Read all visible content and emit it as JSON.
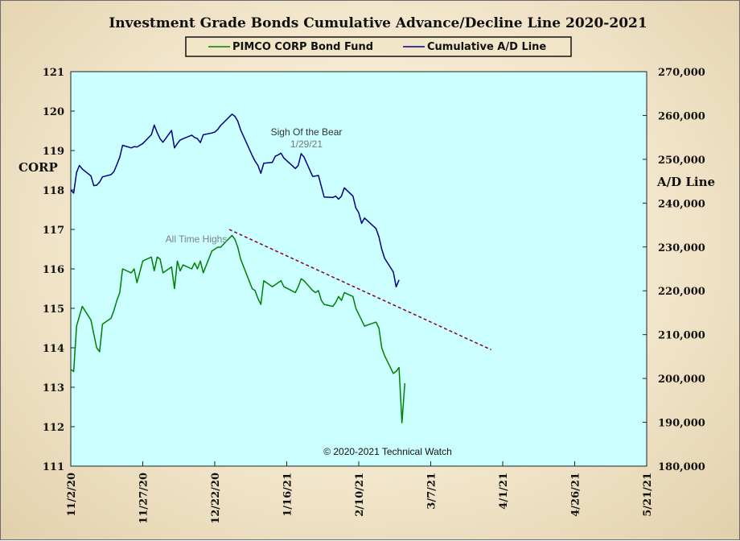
{
  "chart_data": {
    "type": "line",
    "title": "Investment Grade Bonds Cumulative Advance/Decline Line 2020-2021",
    "y_left_label": "CORP",
    "y_right_label": "A/D Line",
    "y_left_range": [
      111,
      121
    ],
    "y_right_range": [
      180000,
      270000
    ],
    "y_left_ticks": [
      "111",
      "112",
      "113",
      "114",
      "115",
      "116",
      "117",
      "118",
      "119",
      "120",
      "121"
    ],
    "y_right_ticks": [
      "180,000",
      "190,000",
      "200,000",
      "210,000",
      "220,000",
      "230,000",
      "240,000",
      "250,000",
      "260,000",
      "270,000"
    ],
    "x_ticks": [
      "11/2/20",
      "11/27/20",
      "12/22/20",
      "1/16/21",
      "2/10/21",
      "3/7/21",
      "4/1/21",
      "4/26/21",
      "5/21/21"
    ],
    "x_range": [
      "2020-11-02",
      "2021-05-21"
    ],
    "grid": false,
    "legend_position": "top",
    "plot_background": "#ccffff",
    "series": [
      {
        "name": "PIMCO CORP Bond Fund",
        "axis": "left",
        "color": "#008000",
        "points": [
          [
            "2020-11-02",
            113.45
          ],
          [
            "2020-11-03",
            113.4
          ],
          [
            "2020-11-04",
            114.55
          ],
          [
            "2020-11-05",
            114.8
          ],
          [
            "2020-11-06",
            115.05
          ],
          [
            "2020-11-09",
            114.7
          ],
          [
            "2020-11-10",
            114.35
          ],
          [
            "2020-11-11",
            114.0
          ],
          [
            "2020-11-12",
            113.9
          ],
          [
            "2020-11-13",
            114.6
          ],
          [
            "2020-11-16",
            114.75
          ],
          [
            "2020-11-17",
            114.95
          ],
          [
            "2020-11-18",
            115.2
          ],
          [
            "2020-11-19",
            115.4
          ],
          [
            "2020-11-20",
            116.0
          ],
          [
            "2020-11-23",
            115.9
          ],
          [
            "2020-11-24",
            116.0
          ],
          [
            "2020-11-25",
            115.65
          ],
          [
            "2020-11-27",
            116.2
          ],
          [
            "2020-11-30",
            116.3
          ],
          [
            "2020-12-01",
            115.95
          ],
          [
            "2020-12-02",
            116.3
          ],
          [
            "2020-12-03",
            116.25
          ],
          [
            "2020-12-04",
            115.9
          ],
          [
            "2020-12-07",
            116.05
          ],
          [
            "2020-12-08",
            115.5
          ],
          [
            "2020-12-09",
            116.2
          ],
          [
            "2020-12-10",
            115.95
          ],
          [
            "2020-12-11",
            116.1
          ],
          [
            "2020-12-14",
            116.0
          ],
          [
            "2020-12-15",
            116.15
          ],
          [
            "2020-12-16",
            116.0
          ],
          [
            "2020-12-17",
            116.2
          ],
          [
            "2020-12-18",
            115.9
          ],
          [
            "2020-12-21",
            116.45
          ],
          [
            "2020-12-22",
            116.5
          ],
          [
            "2020-12-23",
            116.55
          ],
          [
            "2020-12-24",
            116.55
          ],
          [
            "2020-12-28",
            116.85
          ],
          [
            "2020-12-29",
            116.75
          ],
          [
            "2020-12-30",
            116.55
          ],
          [
            "2020-12-31",
            116.25
          ],
          [
            "2021-01-04",
            115.5
          ],
          [
            "2021-01-05",
            115.45
          ],
          [
            "2021-01-06",
            115.25
          ],
          [
            "2021-01-07",
            115.1
          ],
          [
            "2021-01-08",
            115.7
          ],
          [
            "2021-01-11",
            115.55
          ],
          [
            "2021-01-12",
            115.6
          ],
          [
            "2021-01-13",
            115.65
          ],
          [
            "2021-01-14",
            115.7
          ],
          [
            "2021-01-15",
            115.55
          ],
          [
            "2021-01-19",
            115.4
          ],
          [
            "2021-01-20",
            115.55
          ],
          [
            "2021-01-21",
            115.75
          ],
          [
            "2021-01-22",
            115.7
          ],
          [
            "2021-01-25",
            115.45
          ],
          [
            "2021-01-26",
            115.4
          ],
          [
            "2021-01-27",
            115.45
          ],
          [
            "2021-01-28",
            115.2
          ],
          [
            "2021-01-29",
            115.1
          ],
          [
            "2021-02-01",
            115.05
          ],
          [
            "2021-02-02",
            115.15
          ],
          [
            "2021-02-03",
            115.3
          ],
          [
            "2021-02-04",
            115.2
          ],
          [
            "2021-02-05",
            115.4
          ],
          [
            "2021-02-08",
            115.3
          ],
          [
            "2021-02-09",
            115.0
          ],
          [
            "2021-02-10",
            114.85
          ],
          [
            "2021-02-11",
            114.7
          ],
          [
            "2021-02-12",
            114.55
          ],
          [
            "2021-02-16",
            114.65
          ],
          [
            "2021-02-17",
            114.5
          ],
          [
            "2021-02-18",
            114.0
          ],
          [
            "2021-02-19",
            113.8
          ],
          [
            "2021-02-22",
            113.35
          ],
          [
            "2021-02-23",
            113.4
          ],
          [
            "2021-02-24",
            113.5
          ],
          [
            "2021-02-25",
            112.1
          ],
          [
            "2021-02-26",
            113.1
          ]
        ]
      },
      {
        "name": "Cumulative A/D Line",
        "axis": "right",
        "color": "#000080",
        "points": [
          [
            "2020-11-02",
            243000
          ],
          [
            "2020-11-03",
            242300
          ],
          [
            "2020-11-04",
            247000
          ],
          [
            "2020-11-05",
            248600
          ],
          [
            "2020-11-06",
            247800
          ],
          [
            "2020-11-09",
            246200
          ],
          [
            "2020-11-10",
            244000
          ],
          [
            "2020-11-11",
            244100
          ],
          [
            "2020-11-12",
            244800
          ],
          [
            "2020-11-13",
            246000
          ],
          [
            "2020-11-16",
            246500
          ],
          [
            "2020-11-17",
            247200
          ],
          [
            "2020-11-18",
            248800
          ],
          [
            "2020-11-19",
            250500
          ],
          [
            "2020-11-20",
            253200
          ],
          [
            "2020-11-23",
            252600
          ],
          [
            "2020-11-24",
            252900
          ],
          [
            "2020-11-25",
            252800
          ],
          [
            "2020-11-27",
            253600
          ],
          [
            "2020-11-30",
            255600
          ],
          [
            "2020-12-01",
            257800
          ],
          [
            "2020-12-02",
            256100
          ],
          [
            "2020-12-03",
            254700
          ],
          [
            "2020-12-04",
            253900
          ],
          [
            "2020-12-07",
            256600
          ],
          [
            "2020-12-08",
            252600
          ],
          [
            "2020-12-09",
            253600
          ],
          [
            "2020-12-10",
            254400
          ],
          [
            "2020-12-11",
            254700
          ],
          [
            "2020-12-14",
            255500
          ],
          [
            "2020-12-15",
            255000
          ],
          [
            "2020-12-16",
            254700
          ],
          [
            "2020-12-17",
            253800
          ],
          [
            "2020-12-18",
            255600
          ],
          [
            "2020-12-21",
            256000
          ],
          [
            "2020-12-22",
            256200
          ],
          [
            "2020-12-23",
            256800
          ],
          [
            "2020-12-24",
            257700
          ],
          [
            "2020-12-28",
            260300
          ],
          [
            "2020-12-29",
            259800
          ],
          [
            "2020-12-30",
            258700
          ],
          [
            "2020-12-31",
            256700
          ],
          [
            "2021-01-04",
            250900
          ],
          [
            "2021-01-05",
            249600
          ],
          [
            "2021-01-06",
            248600
          ],
          [
            "2021-01-07",
            246800
          ],
          [
            "2021-01-08",
            249100
          ],
          [
            "2021-01-11",
            249300
          ],
          [
            "2021-01-12",
            250700
          ],
          [
            "2021-01-13",
            251000
          ],
          [
            "2021-01-14",
            251400
          ],
          [
            "2021-01-15",
            250300
          ],
          [
            "2021-01-19",
            247900
          ],
          [
            "2021-01-20",
            248600
          ],
          [
            "2021-01-21",
            251300
          ],
          [
            "2021-01-22",
            250500
          ],
          [
            "2021-01-25",
            246100
          ],
          [
            "2021-01-26",
            246200
          ],
          [
            "2021-01-27",
            246300
          ],
          [
            "2021-01-28",
            243800
          ],
          [
            "2021-01-29",
            241400
          ],
          [
            "2021-02-01",
            241300
          ],
          [
            "2021-02-02",
            241600
          ],
          [
            "2021-02-03",
            240900
          ],
          [
            "2021-02-04",
            241600
          ],
          [
            "2021-02-05",
            243500
          ],
          [
            "2021-02-08",
            241600
          ],
          [
            "2021-02-09",
            238900
          ],
          [
            "2021-02-10",
            237800
          ],
          [
            "2021-02-11",
            235400
          ],
          [
            "2021-02-12",
            236600
          ],
          [
            "2021-02-16",
            234200
          ],
          [
            "2021-02-17",
            232300
          ],
          [
            "2021-02-18",
            229500
          ],
          [
            "2021-02-19",
            227400
          ],
          [
            "2021-02-22",
            224300
          ],
          [
            "2021-02-23",
            220900
          ],
          [
            "2021-02-24",
            222500
          ]
        ]
      }
    ],
    "annotations": [
      {
        "text": "Sigh Of the Bear",
        "color": "#333333"
      },
      {
        "text": "1/29/21",
        "color": "#777777"
      },
      {
        "text": "All Time Highs",
        "color": "#808080"
      },
      {
        "text": "© 2020-2021  Technical Watch",
        "color": "#111111"
      }
    ],
    "trendline": {
      "color": "#800040",
      "style": "dashed",
      "axis": "left",
      "from": [
        "2020-12-27",
        117.0
      ],
      "to": [
        "2021-03-28",
        113.95
      ]
    }
  }
}
